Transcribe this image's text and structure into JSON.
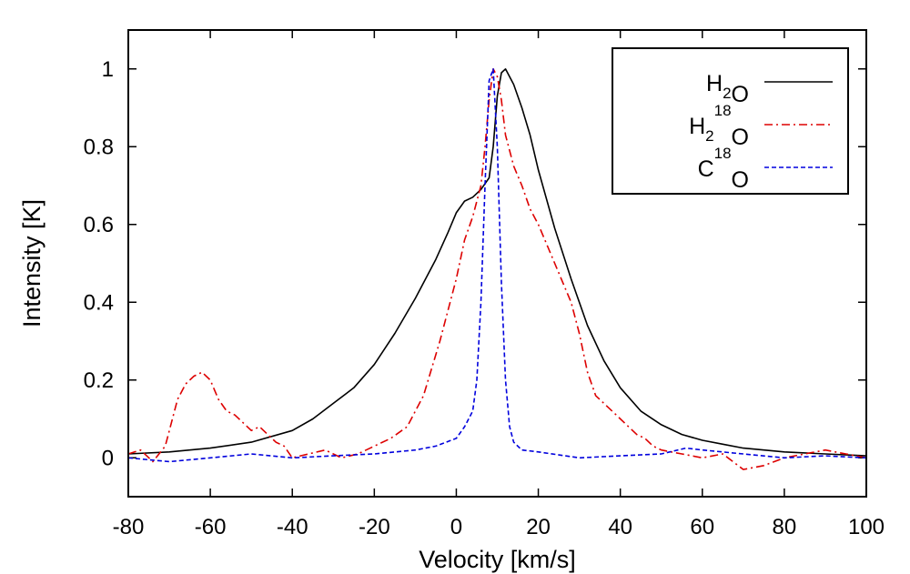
{
  "chart_data": {
    "type": "line",
    "title": "",
    "xlabel": "Velocity [km/s]",
    "ylabel": "Intensity [K]",
    "xlim": [
      -80,
      100
    ],
    "ylim": [
      -0.1,
      1.1
    ],
    "xticks": [
      "-80",
      "-60",
      "-40",
      "-20",
      "0",
      "20",
      "40",
      "60",
      "80",
      "100"
    ],
    "yticks": [
      "0",
      "0.2",
      "0.4",
      "0.6",
      "0.8",
      "1"
    ],
    "legend_position": "top-right",
    "grid": false,
    "series": [
      {
        "name_main": "H",
        "name_sub": "2",
        "name_sup": "",
        "name_tail": "O",
        "color": "#000000",
        "dash": "solid",
        "x": [
          -80,
          -70,
          -60,
          -50,
          -40,
          -35,
          -30,
          -25,
          -20,
          -15,
          -10,
          -5,
          -2,
          0,
          2,
          4,
          6,
          8,
          9,
          10,
          11,
          12,
          14,
          16,
          18,
          20,
          24,
          28,
          32,
          36,
          40,
          45,
          50,
          55,
          60,
          65,
          70,
          80,
          90,
          100
        ],
        "y": [
          0.01,
          0.015,
          0.025,
          0.04,
          0.07,
          0.1,
          0.14,
          0.18,
          0.24,
          0.32,
          0.41,
          0.51,
          0.58,
          0.63,
          0.66,
          0.67,
          0.69,
          0.72,
          0.8,
          0.93,
          0.99,
          1.0,
          0.96,
          0.9,
          0.83,
          0.74,
          0.59,
          0.46,
          0.34,
          0.25,
          0.18,
          0.12,
          0.085,
          0.06,
          0.045,
          0.035,
          0.025,
          0.015,
          0.01,
          0.005
        ]
      },
      {
        "name_main": "H",
        "name_sub": "2",
        "name_sup": "18",
        "name_tail": "O",
        "color": "#dd0000",
        "dash": "dashdot",
        "x": [
          -80,
          -77,
          -74,
          -71,
          -68,
          -66,
          -64,
          -62,
          -60,
          -58,
          -56,
          -54,
          -52,
          -50,
          -48,
          -46,
          -44,
          -42,
          -40,
          -36,
          -32,
          -28,
          -24,
          -20,
          -16,
          -12,
          -8,
          -6,
          -4,
          -2,
          0,
          2,
          4,
          6,
          7,
          8,
          9,
          10,
          11,
          12,
          14,
          16,
          18,
          20,
          22,
          24,
          26,
          28,
          30,
          32,
          34,
          36,
          38,
          40,
          42,
          44,
          46,
          48,
          50,
          55,
          60,
          65,
          70,
          75,
          80,
          85,
          90,
          95,
          100
        ],
        "y": [
          0.01,
          0.02,
          -0.01,
          0.03,
          0.15,
          0.19,
          0.21,
          0.22,
          0.2,
          0.15,
          0.12,
          0.11,
          0.09,
          0.07,
          0.08,
          0.06,
          0.04,
          0.03,
          0.0,
          0.01,
          0.02,
          0.0,
          0.01,
          0.03,
          0.05,
          0.08,
          0.16,
          0.23,
          0.3,
          0.38,
          0.46,
          0.56,
          0.62,
          0.7,
          0.8,
          0.92,
          1.0,
          0.98,
          0.92,
          0.83,
          0.75,
          0.7,
          0.64,
          0.6,
          0.55,
          0.5,
          0.45,
          0.4,
          0.32,
          0.22,
          0.16,
          0.14,
          0.12,
          0.1,
          0.08,
          0.06,
          0.05,
          0.03,
          0.02,
          0.01,
          0.0,
          0.01,
          -0.03,
          -0.02,
          0.0,
          0.01,
          0.02,
          0.01,
          0.0
        ]
      },
      {
        "name_main": "C",
        "name_sub": "",
        "name_sup": "18",
        "name_tail": "O",
        "color": "#0000dd",
        "dash": "dashed",
        "x": [
          -80,
          -70,
          -60,
          -50,
          -40,
          -30,
          -20,
          -10,
          -5,
          0,
          2,
          4,
          5,
          6,
          7,
          8,
          9,
          10,
          11,
          12,
          13,
          14,
          16,
          20,
          30,
          40,
          50,
          56,
          60,
          70,
          80,
          90,
          100
        ],
        "y": [
          0.0,
          -0.01,
          0.0,
          0.01,
          0.0,
          0.005,
          0.01,
          0.02,
          0.03,
          0.05,
          0.08,
          0.12,
          0.2,
          0.4,
          0.7,
          0.97,
          1.0,
          0.8,
          0.45,
          0.2,
          0.08,
          0.04,
          0.02,
          0.015,
          0.0,
          0.005,
          0.01,
          0.025,
          0.02,
          0.01,
          0.0,
          0.005,
          0.0
        ]
      }
    ]
  }
}
